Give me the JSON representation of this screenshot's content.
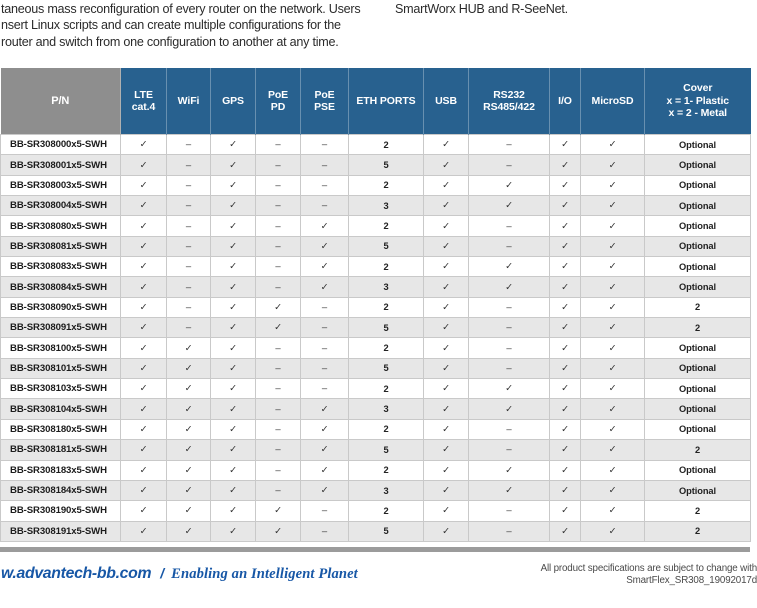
{
  "page": {
    "intro_left_lines": [
      "taneous mass reconfiguration of every router on the network. Users",
      "nsert Linux scripts and can create multiple configurations for the",
      "router and switch from one configuration to another at any time."
    ],
    "intro_right": "SmartWorx HUB and R-SeeNet.",
    "footer": {
      "site": "w.advantech-bb.com",
      "separator": "/",
      "tagline": "Enabling an Intelligent Planet",
      "note_line1": "All product specifications are subject to change with",
      "note_line2": "SmartFlex_SR308_19092017d"
    }
  },
  "symbols": {
    "check": "✓",
    "dash": "–"
  },
  "colors": {
    "header_blue": "#28618f",
    "header_gray": "#8e8e8e",
    "row_alt_gray": "#e7e7e7",
    "footer_blue": "#1757a6",
    "divider_gray": "#9b9b9b"
  },
  "table": {
    "header": {
      "pn": "P/N",
      "lte": "LTE\ncat.4",
      "wifi": "WiFi",
      "gps": "GPS",
      "poe_pd": "PoE\nPD",
      "poe_pse": "PoE\nPSE",
      "eth": "ETH PORTS",
      "usb": "USB",
      "rs": "RS232\nRS485/422",
      "io": "I/O",
      "microsd": "MicroSD",
      "cover": "Cover\nx = 1- Plastic\nx = 2 - Metal"
    },
    "rows": [
      {
        "pn": "BB-SR308000x5-SWH",
        "cells": [
          "check",
          "dash",
          "check",
          "dash",
          "dash",
          "2",
          "check",
          "dash",
          "check",
          "check",
          "Optional"
        ]
      },
      {
        "pn": "BB-SR308001x5-SWH",
        "cells": [
          "check",
          "dash",
          "check",
          "dash",
          "dash",
          "5",
          "check",
          "dash",
          "check",
          "check",
          "Optional"
        ]
      },
      {
        "pn": "BB-SR308003x5-SWH",
        "cells": [
          "check",
          "dash",
          "check",
          "dash",
          "dash",
          "2",
          "check",
          "check",
          "check",
          "check",
          "Optional"
        ]
      },
      {
        "pn": "BB-SR308004x5-SWH",
        "cells": [
          "check",
          "dash",
          "check",
          "dash",
          "dash",
          "3",
          "check",
          "check",
          "check",
          "check",
          "Optional"
        ]
      },
      {
        "pn": "BB-SR308080x5-SWH",
        "cells": [
          "check",
          "dash",
          "check",
          "dash",
          "check",
          "2",
          "check",
          "dash",
          "check",
          "check",
          "Optional"
        ]
      },
      {
        "pn": "BB-SR308081x5-SWH",
        "cells": [
          "check",
          "dash",
          "check",
          "dash",
          "check",
          "5",
          "check",
          "dash",
          "check",
          "check",
          "Optional"
        ]
      },
      {
        "pn": "BB-SR308083x5-SWH",
        "cells": [
          "check",
          "dash",
          "check",
          "dash",
          "check",
          "2",
          "check",
          "check",
          "check",
          "check",
          "Optional"
        ]
      },
      {
        "pn": "BB-SR308084x5-SWH",
        "cells": [
          "check",
          "dash",
          "check",
          "dash",
          "check",
          "3",
          "check",
          "check",
          "check",
          "check",
          "Optional"
        ]
      },
      {
        "pn": "BB-SR308090x5-SWH",
        "cells": [
          "check",
          "dash",
          "check",
          "check",
          "dash",
          "2",
          "check",
          "dash",
          "check",
          "check",
          "2"
        ]
      },
      {
        "pn": "BB-SR308091x5-SWH",
        "cells": [
          "check",
          "dash",
          "check",
          "check",
          "dash",
          "5",
          "check",
          "dash",
          "check",
          "check",
          "2"
        ]
      },
      {
        "pn": "BB-SR308100x5-SWH",
        "cells": [
          "check",
          "check",
          "check",
          "dash",
          "dash",
          "2",
          "check",
          "dash",
          "check",
          "check",
          "Optional"
        ]
      },
      {
        "pn": "BB-SR308101x5-SWH",
        "cells": [
          "check",
          "check",
          "check",
          "dash",
          "dash",
          "5",
          "check",
          "dash",
          "check",
          "check",
          "Optional"
        ]
      },
      {
        "pn": "BB-SR308103x5-SWH",
        "cells": [
          "check",
          "check",
          "check",
          "dash",
          "dash",
          "2",
          "check",
          "check",
          "check",
          "check",
          "Optional"
        ]
      },
      {
        "pn": "BB-SR308104x5-SWH",
        "cells": [
          "check",
          "check",
          "check",
          "dash",
          "check",
          "3",
          "check",
          "check",
          "check",
          "check",
          "Optional"
        ]
      },
      {
        "pn": "BB-SR308180x5-SWH",
        "cells": [
          "check",
          "check",
          "check",
          "dash",
          "check",
          "2",
          "check",
          "dash",
          "check",
          "check",
          "Optional"
        ]
      },
      {
        "pn": "BB-SR308181x5-SWH",
        "cells": [
          "check",
          "check",
          "check",
          "dash",
          "check",
          "5",
          "check",
          "dash",
          "check",
          "check",
          "2"
        ]
      },
      {
        "pn": "BB-SR308183x5-SWH",
        "cells": [
          "check",
          "check",
          "check",
          "dash",
          "check",
          "2",
          "check",
          "check",
          "check",
          "check",
          "Optional"
        ]
      },
      {
        "pn": "BB-SR308184x5-SWH",
        "cells": [
          "check",
          "check",
          "check",
          "dash",
          "check",
          "3",
          "check",
          "check",
          "check",
          "check",
          "Optional"
        ]
      },
      {
        "pn": "BB-SR308190x5-SWH",
        "cells": [
          "check",
          "check",
          "check",
          "check",
          "dash",
          "2",
          "check",
          "dash",
          "check",
          "check",
          "2"
        ]
      },
      {
        "pn": "BB-SR308191x5-SWH",
        "cells": [
          "check",
          "check",
          "check",
          "check",
          "dash",
          "5",
          "check",
          "dash",
          "check",
          "check",
          "2"
        ]
      }
    ]
  }
}
